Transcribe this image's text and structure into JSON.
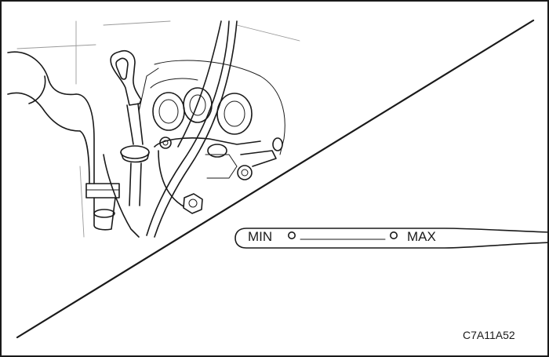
{
  "dipstick": {
    "min_label": "MIN",
    "max_label": "MAX"
  },
  "figure_code": "C7A11A52"
}
